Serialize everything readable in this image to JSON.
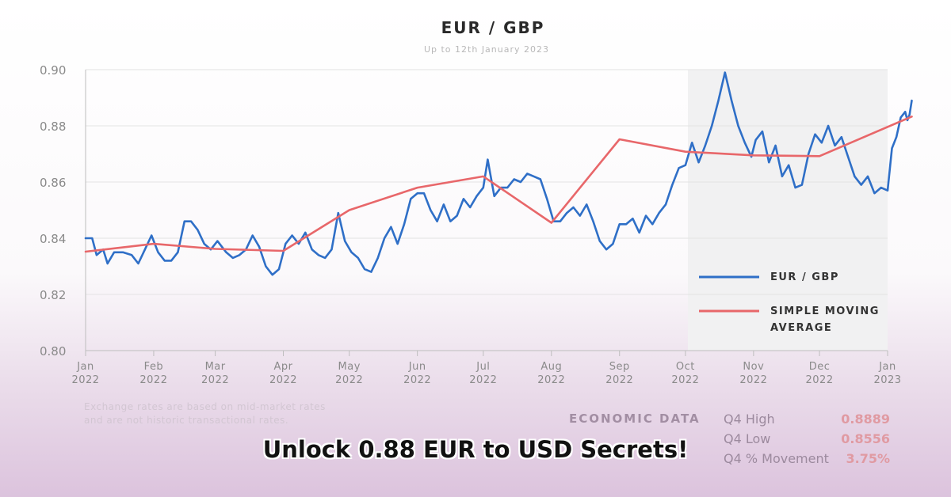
{
  "chart_data": {
    "type": "line",
    "title": "EUR / GBP",
    "subtitle": "Up to 12th January 2023",
    "ylim": [
      0.8,
      0.9
    ],
    "y_ticks": [
      "0.90",
      "0.88",
      "0.86",
      "0.84",
      "0.82",
      "0.80"
    ],
    "x_ticks": [
      {
        "month": "Jan",
        "year": "2022"
      },
      {
        "month": "Feb",
        "year": "2022"
      },
      {
        "month": "Mar",
        "year": "2022"
      },
      {
        "month": "Apr",
        "year": "2022"
      },
      {
        "month": "May",
        "year": "2022"
      },
      {
        "month": "Jun",
        "year": "2022"
      },
      {
        "month": "Jul",
        "year": "2022"
      },
      {
        "month": "Aug",
        "year": "2022"
      },
      {
        "month": "Sep",
        "year": "2022"
      },
      {
        "month": "Oct",
        "year": "2022"
      },
      {
        "month": "Nov",
        "year": "2022"
      },
      {
        "month": "Dec",
        "year": "2022"
      },
      {
        "month": "Jan",
        "year": "2023"
      }
    ],
    "grid": true,
    "legend_position": "right",
    "series": [
      {
        "name": "EUR / GBP",
        "color": "#2f6fc7",
        "points": [
          [
            "2022-01-01",
            0.84
          ],
          [
            "2022-01-04",
            0.84
          ],
          [
            "2022-01-06",
            0.834
          ],
          [
            "2022-01-09",
            0.836
          ],
          [
            "2022-01-11",
            0.831
          ],
          [
            "2022-01-14",
            0.835
          ],
          [
            "2022-01-18",
            0.835
          ],
          [
            "2022-01-22",
            0.834
          ],
          [
            "2022-01-25",
            0.831
          ],
          [
            "2022-01-28",
            0.836
          ],
          [
            "2022-01-31",
            0.841
          ],
          [
            "2022-02-03",
            0.835
          ],
          [
            "2022-02-06",
            0.832
          ],
          [
            "2022-02-09",
            0.832
          ],
          [
            "2022-02-12",
            0.835
          ],
          [
            "2022-02-15",
            0.846
          ],
          [
            "2022-02-18",
            0.846
          ],
          [
            "2022-02-21",
            0.843
          ],
          [
            "2022-02-24",
            0.838
          ],
          [
            "2022-02-27",
            0.836
          ],
          [
            "2022-03-02",
            0.839
          ],
          [
            "2022-03-06",
            0.835
          ],
          [
            "2022-03-09",
            0.833
          ],
          [
            "2022-03-12",
            0.834
          ],
          [
            "2022-03-15",
            0.836
          ],
          [
            "2022-03-18",
            0.841
          ],
          [
            "2022-03-21",
            0.837
          ],
          [
            "2022-03-24",
            0.83
          ],
          [
            "2022-03-27",
            0.827
          ],
          [
            "2022-03-30",
            0.829
          ],
          [
            "2022-04-02",
            0.838
          ],
          [
            "2022-04-05",
            0.841
          ],
          [
            "2022-04-08",
            0.838
          ],
          [
            "2022-04-11",
            0.842
          ],
          [
            "2022-04-14",
            0.836
          ],
          [
            "2022-04-17",
            0.834
          ],
          [
            "2022-04-20",
            0.833
          ],
          [
            "2022-04-23",
            0.836
          ],
          [
            "2022-04-26",
            0.849
          ],
          [
            "2022-04-29",
            0.839
          ],
          [
            "2022-05-02",
            0.835
          ],
          [
            "2022-05-05",
            0.833
          ],
          [
            "2022-05-08",
            0.829
          ],
          [
            "2022-05-11",
            0.828
          ],
          [
            "2022-05-14",
            0.833
          ],
          [
            "2022-05-17",
            0.84
          ],
          [
            "2022-05-20",
            0.844
          ],
          [
            "2022-05-23",
            0.838
          ],
          [
            "2022-05-26",
            0.845
          ],
          [
            "2022-05-29",
            0.854
          ],
          [
            "2022-06-01",
            0.856
          ],
          [
            "2022-06-04",
            0.856
          ],
          [
            "2022-06-07",
            0.85
          ],
          [
            "2022-06-10",
            0.846
          ],
          [
            "2022-06-13",
            0.852
          ],
          [
            "2022-06-16",
            0.846
          ],
          [
            "2022-06-19",
            0.848
          ],
          [
            "2022-06-22",
            0.854
          ],
          [
            "2022-06-25",
            0.851
          ],
          [
            "2022-06-28",
            0.855
          ],
          [
            "2022-07-01",
            0.858
          ],
          [
            "2022-07-03",
            0.868
          ],
          [
            "2022-07-06",
            0.855
          ],
          [
            "2022-07-09",
            0.858
          ],
          [
            "2022-07-12",
            0.858
          ],
          [
            "2022-07-15",
            0.861
          ],
          [
            "2022-07-18",
            0.86
          ],
          [
            "2022-07-21",
            0.863
          ],
          [
            "2022-07-24",
            0.862
          ],
          [
            "2022-07-27",
            0.861
          ],
          [
            "2022-07-30",
            0.854
          ],
          [
            "2022-08-02",
            0.846
          ],
          [
            "2022-08-05",
            0.846
          ],
          [
            "2022-08-08",
            0.849
          ],
          [
            "2022-08-11",
            0.851
          ],
          [
            "2022-08-14",
            0.848
          ],
          [
            "2022-08-17",
            0.852
          ],
          [
            "2022-08-20",
            0.846
          ],
          [
            "2022-08-23",
            0.839
          ],
          [
            "2022-08-26",
            0.836
          ],
          [
            "2022-08-29",
            0.838
          ],
          [
            "2022-09-01",
            0.845
          ],
          [
            "2022-09-04",
            0.845
          ],
          [
            "2022-09-07",
            0.847
          ],
          [
            "2022-09-10",
            0.842
          ],
          [
            "2022-09-13",
            0.848
          ],
          [
            "2022-09-16",
            0.845
          ],
          [
            "2022-09-19",
            0.849
          ],
          [
            "2022-09-22",
            0.852
          ],
          [
            "2022-09-25",
            0.859
          ],
          [
            "2022-09-28",
            0.865
          ],
          [
            "2022-10-01",
            0.866
          ],
          [
            "2022-10-04",
            0.874
          ],
          [
            "2022-10-07",
            0.867
          ],
          [
            "2022-10-10",
            0.873
          ],
          [
            "2022-10-13",
            0.88
          ],
          [
            "2022-10-16",
            0.889
          ],
          [
            "2022-10-19",
            0.899
          ],
          [
            "2022-10-22",
            0.889
          ],
          [
            "2022-10-25",
            0.88
          ],
          [
            "2022-10-28",
            0.874
          ],
          [
            "2022-10-31",
            0.869
          ],
          [
            "2022-11-02",
            0.875
          ],
          [
            "2022-11-05",
            0.878
          ],
          [
            "2022-11-08",
            0.867
          ],
          [
            "2022-11-11",
            0.873
          ],
          [
            "2022-11-14",
            0.862
          ],
          [
            "2022-11-17",
            0.866
          ],
          [
            "2022-11-20",
            0.858
          ],
          [
            "2022-11-23",
            0.859
          ],
          [
            "2022-11-26",
            0.87
          ],
          [
            "2022-11-29",
            0.877
          ],
          [
            "2022-12-02",
            0.874
          ],
          [
            "2022-12-05",
            0.88
          ],
          [
            "2022-12-08",
            0.873
          ],
          [
            "2022-12-11",
            0.876
          ],
          [
            "2022-12-14",
            0.869
          ],
          [
            "2022-12-17",
            0.862
          ],
          [
            "2022-12-20",
            0.859
          ],
          [
            "2022-12-23",
            0.862
          ],
          [
            "2022-12-26",
            0.856
          ],
          [
            "2022-12-29",
            0.858
          ],
          [
            "2023-01-01",
            0.857
          ],
          [
            "2023-01-03",
            0.872
          ],
          [
            "2023-01-05",
            0.876
          ],
          [
            "2023-01-07",
            0.883
          ],
          [
            "2023-01-09",
            0.885
          ],
          [
            "2023-01-10",
            0.882
          ],
          [
            "2023-01-11",
            0.884
          ],
          [
            "2023-01-12",
            0.889
          ]
        ]
      },
      {
        "name": "SIMPLE MOVING AVERAGE",
        "color": "#e8676a",
        "points": [
          [
            "2022-01-01",
            0.8352
          ],
          [
            "2022-02-01",
            0.838
          ],
          [
            "2022-03-01",
            0.8362
          ],
          [
            "2022-04-01",
            0.8355
          ],
          [
            "2022-05-01",
            0.85
          ],
          [
            "2022-06-01",
            0.858
          ],
          [
            "2022-07-01",
            0.862
          ],
          [
            "2022-08-01",
            0.8455
          ],
          [
            "2022-09-01",
            0.8752
          ],
          [
            "2022-10-01",
            0.8708
          ],
          [
            "2022-11-01",
            0.8695
          ],
          [
            "2022-12-01",
            0.8692
          ],
          [
            "2023-01-12",
            0.8833
          ]
        ]
      }
    ]
  },
  "legend": {
    "item1": "EUR / GBP",
    "item2_line1": "SIMPLE MOVING",
    "item2_line2": "AVERAGE"
  },
  "footnote": {
    "line1": "Exchange rates are based on mid-market rates",
    "line2": "and are not historic transactional rates."
  },
  "economic_data": {
    "title": "ECONOMIC DATA",
    "rows": [
      {
        "label": "Q4 High",
        "value": "0.8889"
      },
      {
        "label": "Q4 Low",
        "value": "0.8556"
      },
      {
        "label": "Q4 % Movement",
        "value": "3.75%"
      }
    ]
  },
  "headline": "Unlock 0.88 EUR to USD Secrets!"
}
